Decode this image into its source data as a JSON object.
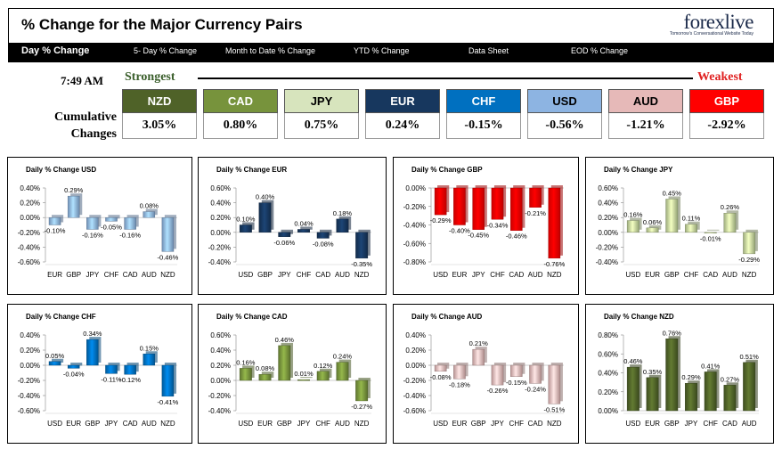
{
  "header": {
    "title": "% Change for the Major Currency Pairs",
    "logo": "forexlive",
    "logo_tagline": "Tomorrow's Conversational Website Today"
  },
  "nav": {
    "items": [
      {
        "label": "Day % Change",
        "active": true
      },
      {
        "label": "5- Day % Change",
        "active": false
      },
      {
        "label": "Month to Date % Change",
        "active": false
      },
      {
        "label": "YTD % Change",
        "active": false
      },
      {
        "label": "Data Sheet",
        "active": false
      },
      {
        "label": "EOD % Change",
        "active": false
      }
    ]
  },
  "summary": {
    "time": "7:49 AM",
    "strongest_label": "Strongest",
    "weakest_label": "Weakest",
    "cumulative_label_line1": "Cumulative",
    "cumulative_label_line2": "Changes",
    "currencies": [
      {
        "code": "NZD",
        "value": "3.05%",
        "bg": "#4f6228",
        "fg": "#ffffff"
      },
      {
        "code": "CAD",
        "value": "0.80%",
        "bg": "#77933c",
        "fg": "#ffffff"
      },
      {
        "code": "JPY",
        "value": "0.75%",
        "bg": "#d7e4bd",
        "fg": "#000000"
      },
      {
        "code": "EUR",
        "value": "0.24%",
        "bg": "#17375e",
        "fg": "#ffffff"
      },
      {
        "code": "CHF",
        "value": "-0.15%",
        "bg": "#0070c0",
        "fg": "#ffffff"
      },
      {
        "code": "USD",
        "value": "-0.56%",
        "bg": "#8db4e2",
        "fg": "#000000"
      },
      {
        "code": "AUD",
        "value": "-1.21%",
        "bg": "#e6b9b8",
        "fg": "#000000"
      },
      {
        "code": "GBP",
        "value": "-2.92%",
        "bg": "#ff0000",
        "fg": "#ffffff"
      }
    ]
  },
  "chart_data": [
    {
      "type": "bar",
      "title": "Daily % Change USD",
      "categories": [
        "EUR",
        "GBP",
        "JPY",
        "CHF",
        "CAD",
        "AUD",
        "NZD"
      ],
      "values": [
        -0.1,
        0.29,
        -0.16,
        -0.05,
        -0.16,
        0.08,
        -0.46
      ],
      "labels": [
        "-0.10%",
        "0.29%",
        "-0.16%",
        "-0.05%",
        "-0.16%",
        "0.08%",
        "-0.46%"
      ],
      "yticks": [
        "0.40%",
        "0.20%",
        "0.00%",
        "-0.20%",
        "-0.40%",
        "-0.60%"
      ],
      "ylim": [
        -0.6,
        0.4
      ],
      "color": "#8db4e2"
    },
    {
      "type": "bar",
      "title": "Daily % Change EUR",
      "categories": [
        "USD",
        "GBP",
        "JPY",
        "CHF",
        "CAD",
        "AUD",
        "NZD"
      ],
      "values": [
        0.1,
        0.4,
        -0.06,
        0.04,
        -0.08,
        0.18,
        -0.35
      ],
      "labels": [
        "0.10%",
        "0.40%",
        "-0.06%",
        "0.04%",
        "-0.08%",
        "0.18%",
        "-0.35%"
      ],
      "yticks": [
        "0.60%",
        "0.40%",
        "0.20%",
        "0.00%",
        "-0.20%",
        "-0.40%"
      ],
      "ylim": [
        -0.4,
        0.6
      ],
      "color": "#17375e"
    },
    {
      "type": "bar",
      "title": "Daily % Change GBP",
      "categories": [
        "USD",
        "EUR",
        "JPY",
        "CHF",
        "CAD",
        "AUD",
        "NZD"
      ],
      "values": [
        -0.29,
        -0.4,
        -0.45,
        -0.34,
        -0.46,
        -0.21,
        -0.76
      ],
      "labels": [
        "-0.29%",
        "-0.40%",
        "-0.45%",
        "-0.34%",
        "-0.46%",
        "-0.21%",
        "-0.76%"
      ],
      "yticks": [
        "0.00%",
        "-0.20%",
        "-0.40%",
        "-0.60%",
        "-0.80%"
      ],
      "ylim": [
        -0.8,
        0.0
      ],
      "color": "#ff0000"
    },
    {
      "type": "bar",
      "title": "Daily % Change JPY",
      "categories": [
        "USD",
        "EUR",
        "GBP",
        "CHF",
        "CAD",
        "AUD",
        "NZD"
      ],
      "values": [
        0.16,
        0.06,
        0.45,
        0.11,
        -0.01,
        0.26,
        -0.29
      ],
      "labels": [
        "0.16%",
        "0.06%",
        "0.45%",
        "0.11%",
        "-0.01%",
        "0.26%",
        "-0.29%"
      ],
      "yticks": [
        "0.60%",
        "0.40%",
        "0.20%",
        "0.00%",
        "-0.20%",
        "-0.40%"
      ],
      "ylim": [
        -0.4,
        0.6
      ],
      "color": "#c3d69b"
    },
    {
      "type": "bar",
      "title": "Daily % Change CHF",
      "categories": [
        "USD",
        "EUR",
        "GBP",
        "JPY",
        "CAD",
        "AUD",
        "NZD"
      ],
      "values": [
        0.05,
        -0.04,
        0.34,
        -0.11,
        -0.12,
        0.15,
        -0.41
      ],
      "labels": [
        "0.05%",
        "-0.04%",
        "0.34%",
        "-0.11%",
        "-0.12%",
        "0.15%",
        "-0.41%"
      ],
      "yticks": [
        "0.40%",
        "0.20%",
        "0.00%",
        "-0.20%",
        "-0.40%",
        "-0.60%"
      ],
      "ylim": [
        -0.6,
        0.4
      ],
      "color": "#0070c0"
    },
    {
      "type": "bar",
      "title": "Daily % Change CAD",
      "categories": [
        "USD",
        "EUR",
        "GBP",
        "JPY",
        "CHF",
        "AUD",
        "NZD"
      ],
      "values": [
        0.16,
        0.08,
        0.46,
        0.01,
        0.12,
        0.24,
        -0.27
      ],
      "labels": [
        "0.16%",
        "0.08%",
        "0.46%",
        "0.01%",
        "0.12%",
        "0.24%",
        "-0.27%"
      ],
      "yticks": [
        "0.60%",
        "0.40%",
        "0.20%",
        "0.00%",
        "-0.20%",
        "-0.40%"
      ],
      "ylim": [
        -0.4,
        0.6
      ],
      "color": "#77933c"
    },
    {
      "type": "bar",
      "title": "Daily % Change AUD",
      "categories": [
        "USD",
        "EUR",
        "GBP",
        "JPY",
        "CHF",
        "CAD",
        "NZD"
      ],
      "values": [
        -0.08,
        -0.18,
        0.21,
        -0.26,
        -0.15,
        -0.24,
        -0.51
      ],
      "labels": [
        "-0.08%",
        "-0.18%",
        "0.21%",
        "-0.26%",
        "-0.15%",
        "-0.24%",
        "-0.51%"
      ],
      "yticks": [
        "0.40%",
        "0.20%",
        "0.00%",
        "-0.20%",
        "-0.40%",
        "-0.60%"
      ],
      "ylim": [
        -0.6,
        0.4
      ],
      "color": "#e6b9b8"
    },
    {
      "type": "bar",
      "title": "Daily % Change NZD",
      "categories": [
        "USD",
        "EUR",
        "GBP",
        "JPY",
        "CHF",
        "CAD",
        "AUD"
      ],
      "values": [
        0.46,
        0.35,
        0.76,
        0.29,
        0.41,
        0.27,
        0.51
      ],
      "labels": [
        "0.46%",
        "0.35%",
        "0.76%",
        "0.29%",
        "0.41%",
        "0.27%",
        "0.51%"
      ],
      "yticks": [
        "0.80%",
        "0.60%",
        "0.40%",
        "0.20%",
        "0.00%"
      ],
      "ylim": [
        0.0,
        0.8
      ],
      "color": "#4f6228"
    }
  ]
}
